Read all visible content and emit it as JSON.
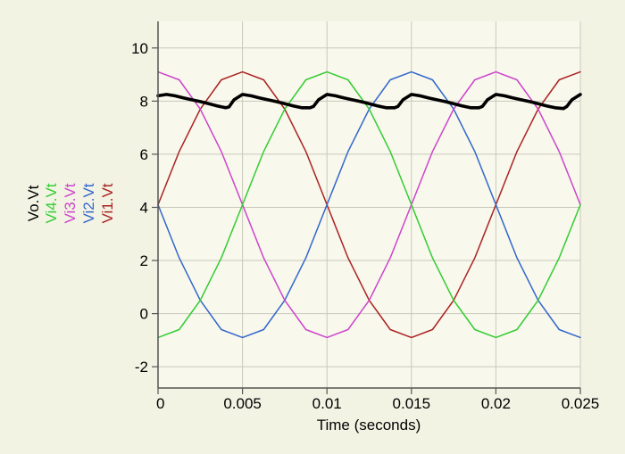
{
  "chart_data": {
    "type": "line",
    "title": "",
    "xlabel": "Time (seconds)",
    "ylabel": "",
    "xlim": [
      0,
      0.025
    ],
    "ylim": [
      -2.8,
      11
    ],
    "x_ticks": [
      0,
      0.005,
      0.01,
      0.015,
      0.02,
      0.025
    ],
    "x_tick_labels": [
      "0",
      "0.005",
      "0.01",
      "0.015",
      "0.02",
      "0.025"
    ],
    "y_ticks": [
      -2,
      0,
      2,
      4,
      6,
      8,
      10
    ],
    "y_tick_labels": [
      "-2",
      "0",
      "2",
      "4",
      "6",
      "8",
      "10"
    ],
    "grid": true,
    "legend_placement": "left, vertical",
    "series": [
      {
        "name": "Vo.Vt",
        "color": "#000000",
        "x": [
          0,
          0.0005,
          0.001,
          0.0015,
          0.002,
          0.0025,
          0.003,
          0.0035,
          0.004,
          0.0042,
          0.0045,
          0.005,
          0.0055,
          0.006,
          0.0065,
          0.007,
          0.0075,
          0.008,
          0.0085,
          0.009,
          0.0092,
          0.0095,
          0.01,
          0.0105,
          0.011,
          0.0115,
          0.012,
          0.0125,
          0.013,
          0.0135,
          0.014,
          0.0142,
          0.0145,
          0.015,
          0.0155,
          0.016,
          0.0165,
          0.017,
          0.0175,
          0.018,
          0.0185,
          0.019,
          0.0192,
          0.0195,
          0.02,
          0.0205,
          0.021,
          0.0215,
          0.022,
          0.0225,
          0.023,
          0.0235,
          0.024,
          0.0242,
          0.0245,
          0.025
        ],
        "y": [
          8.2,
          8.25,
          8.2,
          8.12,
          8.05,
          7.98,
          7.9,
          7.82,
          7.75,
          7.78,
          8.05,
          8.25,
          8.2,
          8.12,
          8.05,
          7.98,
          7.9,
          7.82,
          7.75,
          7.75,
          7.8,
          8.05,
          8.25,
          8.2,
          8.12,
          8.05,
          7.98,
          7.9,
          7.82,
          7.75,
          7.75,
          7.8,
          8.05,
          8.25,
          8.2,
          8.12,
          8.05,
          7.98,
          7.9,
          7.82,
          7.75,
          7.75,
          7.8,
          8.05,
          8.25,
          8.2,
          8.12,
          8.05,
          7.98,
          7.9,
          7.82,
          7.75,
          7.72,
          7.8,
          8.05,
          8.25
        ]
      },
      {
        "name": "Vi4.Vt",
        "color": "#33cc33",
        "x": [
          0,
          0.00125,
          0.0025,
          0.00375,
          0.005,
          0.00625,
          0.0075,
          0.00875,
          0.01,
          0.01125,
          0.0125,
          0.01375,
          0.015,
          0.01625,
          0.0175,
          0.01875,
          0.02,
          0.02125,
          0.0225,
          0.02375,
          0.025
        ],
        "y": [
          -0.9,
          -0.6,
          0.5,
          2.1,
          4.1,
          6.1,
          7.7,
          8.8,
          9.1,
          8.8,
          7.7,
          6.1,
          4.1,
          2.1,
          0.5,
          -0.6,
          -0.9,
          -0.6,
          0.5,
          2.1,
          4.1
        ]
      },
      {
        "name": "Vi3.Vt",
        "color": "#cc44cc",
        "x": [
          0,
          0.00125,
          0.0025,
          0.00375,
          0.005,
          0.00625,
          0.0075,
          0.00875,
          0.01,
          0.01125,
          0.0125,
          0.01375,
          0.015,
          0.01625,
          0.0175,
          0.01875,
          0.02,
          0.02125,
          0.0225,
          0.02375,
          0.025
        ],
        "y": [
          9.1,
          8.8,
          7.7,
          6.1,
          4.1,
          2.1,
          0.5,
          -0.6,
          -0.9,
          -0.6,
          0.5,
          2.1,
          4.1,
          6.1,
          7.7,
          8.8,
          9.1,
          8.8,
          7.7,
          6.1,
          4.1
        ]
      },
      {
        "name": "Vi2.Vt",
        "color": "#3366cc",
        "x": [
          0,
          0.00125,
          0.0025,
          0.00375,
          0.005,
          0.00625,
          0.0075,
          0.00875,
          0.01,
          0.01125,
          0.0125,
          0.01375,
          0.015,
          0.01625,
          0.0175,
          0.01875,
          0.02,
          0.02125,
          0.0225,
          0.02375,
          0.025
        ],
        "y": [
          4.1,
          2.1,
          0.5,
          -0.6,
          -0.9,
          -0.6,
          0.5,
          2.1,
          4.1,
          6.1,
          7.7,
          8.8,
          9.1,
          8.8,
          7.7,
          6.1,
          4.1,
          2.1,
          0.5,
          -0.6,
          -0.9
        ]
      },
      {
        "name": "Vi1.Vt",
        "color": "#aa2222",
        "x": [
          0,
          0.00125,
          0.0025,
          0.00375,
          0.005,
          0.00625,
          0.0075,
          0.00875,
          0.01,
          0.01125,
          0.0125,
          0.01375,
          0.015,
          0.01625,
          0.0175,
          0.01875,
          0.02,
          0.02125,
          0.0225,
          0.02375,
          0.025
        ],
        "y": [
          4.1,
          6.1,
          7.7,
          8.8,
          9.1,
          8.8,
          7.7,
          6.1,
          4.1,
          2.1,
          0.5,
          -0.6,
          -0.9,
          -0.6,
          0.5,
          2.1,
          4.1,
          6.1,
          7.7,
          8.8,
          9.1
        ]
      }
    ]
  }
}
